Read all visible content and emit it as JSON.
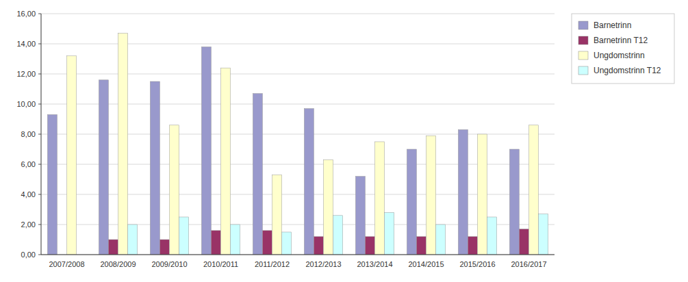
{
  "chart_data": {
    "type": "bar",
    "categories": [
      "2007/2008",
      "2008/2009",
      "2009/2010",
      "2010/2011",
      "2011/2012",
      "2012/2013",
      "2013/2014",
      "2014/2015",
      "2015/2016",
      "2016/2017"
    ],
    "series": [
      {
        "name": "Barnetrinn",
        "color": "#9999cc",
        "values": [
          9.3,
          11.6,
          11.5,
          13.8,
          10.7,
          9.7,
          5.2,
          7.0,
          8.3,
          7.0
        ]
      },
      {
        "name": "Barnetrinn T12",
        "color": "#993366",
        "values": [
          0.0,
          1.0,
          1.0,
          1.6,
          1.6,
          1.2,
          1.2,
          1.2,
          1.2,
          1.7
        ]
      },
      {
        "name": "Ungdomstrinn",
        "color": "#ffffcc",
        "values": [
          13.2,
          14.7,
          8.6,
          12.4,
          5.3,
          6.3,
          7.5,
          7.9,
          8.0,
          8.6
        ]
      },
      {
        "name": "Ungdomstrinn T12",
        "color": "#ccffff",
        "values": [
          0.0,
          2.0,
          2.5,
          2.0,
          1.5,
          2.6,
          2.8,
          2.0,
          2.5,
          2.7
        ]
      }
    ],
    "ylim": [
      0,
      16
    ],
    "yticks": [
      {
        "value": 0.0,
        "label": "0,00"
      },
      {
        "value": 2.0,
        "label": "2,00"
      },
      {
        "value": 4.0,
        "label": "4,00"
      },
      {
        "value": 6.0,
        "label": "6,00"
      },
      {
        "value": 8.0,
        "label": "8,00"
      },
      {
        "value": 10.0,
        "label": "10,00"
      },
      {
        "value": 12.0,
        "label": "12,00"
      },
      {
        "value": 14.0,
        "label": "14,00"
      },
      {
        "value": 16.0,
        "label": "16,00"
      }
    ],
    "grid": true,
    "legend": "right"
  }
}
